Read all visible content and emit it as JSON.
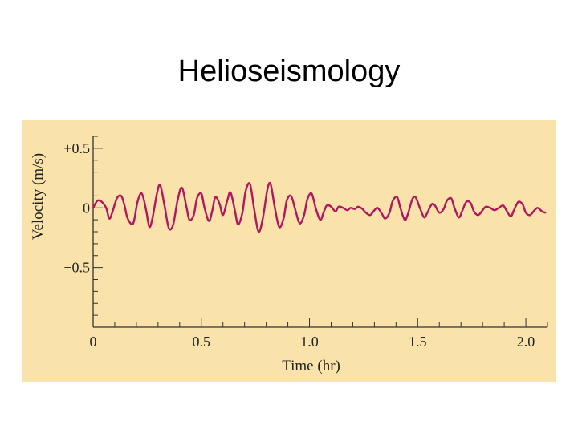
{
  "slide": {
    "title": "Helioseismology"
  },
  "colors": {
    "panel_background": "#f9e3ab",
    "line": "#b0175f",
    "axis": "#333333"
  },
  "chart_data": {
    "type": "line",
    "title": "",
    "xlabel": "Time (hr)",
    "ylabel": "Velocity (m/s)",
    "xlim": [
      0,
      2.1
    ],
    "ylim": [
      -1.0,
      0.6
    ],
    "x_ticks": [
      {
        "value": 0,
        "label": "0"
      },
      {
        "value": 0.5,
        "label": "0.5"
      },
      {
        "value": 1.0,
        "label": "1.0"
      },
      {
        "value": 1.5,
        "label": "1.5"
      },
      {
        "value": 2.0,
        "label": "2.0"
      }
    ],
    "y_ticks": [
      {
        "value": 0.5,
        "label": "+0.5"
      },
      {
        "value": 0,
        "label": "0"
      },
      {
        "value": -0.5,
        "label": "−0.5"
      }
    ],
    "grid": false,
    "series": [
      {
        "values": [
          [
            0.0,
            0.0
          ],
          [
            0.02,
            0.06
          ],
          [
            0.04,
            0.05
          ],
          [
            0.06,
            0.0
          ],
          [
            0.075,
            -0.09
          ],
          [
            0.09,
            -0.03
          ],
          [
            0.11,
            0.08
          ],
          [
            0.13,
            0.1
          ],
          [
            0.145,
            0.02
          ],
          [
            0.16,
            -0.09
          ],
          [
            0.185,
            -0.13
          ],
          [
            0.205,
            0.05
          ],
          [
            0.225,
            0.12
          ],
          [
            0.245,
            -0.02
          ],
          [
            0.26,
            -0.16
          ],
          [
            0.275,
            -0.08
          ],
          [
            0.295,
            0.12
          ],
          [
            0.31,
            0.19
          ],
          [
            0.33,
            0.02
          ],
          [
            0.35,
            -0.17
          ],
          [
            0.37,
            -0.14
          ],
          [
            0.39,
            0.06
          ],
          [
            0.41,
            0.17
          ],
          [
            0.43,
            0.02
          ],
          [
            0.445,
            -0.1
          ],
          [
            0.465,
            -0.06
          ],
          [
            0.48,
            0.08
          ],
          [
            0.5,
            0.12
          ],
          [
            0.515,
            0.0
          ],
          [
            0.535,
            -0.11
          ],
          [
            0.55,
            -0.03
          ],
          [
            0.565,
            0.09
          ],
          [
            0.585,
            0.03
          ],
          [
            0.6,
            -0.06
          ],
          [
            0.62,
            0.06
          ],
          [
            0.635,
            0.13
          ],
          [
            0.655,
            -0.02
          ],
          [
            0.67,
            -0.14
          ],
          [
            0.69,
            -0.04
          ],
          [
            0.705,
            0.14
          ],
          [
            0.725,
            0.2
          ],
          [
            0.745,
            -0.02
          ],
          [
            0.765,
            -0.2
          ],
          [
            0.785,
            -0.08
          ],
          [
            0.805,
            0.15
          ],
          [
            0.82,
            0.2
          ],
          [
            0.84,
            0.0
          ],
          [
            0.86,
            -0.16
          ],
          [
            0.88,
            -0.09
          ],
          [
            0.895,
            0.06
          ],
          [
            0.915,
            0.1
          ],
          [
            0.935,
            -0.02
          ],
          [
            0.955,
            -0.13
          ],
          [
            0.975,
            -0.06
          ],
          [
            0.99,
            0.07
          ],
          [
            1.01,
            0.12
          ],
          [
            1.03,
            -0.01
          ],
          [
            1.05,
            -0.1
          ],
          [
            1.065,
            -0.04
          ],
          [
            1.08,
            0.02
          ],
          [
            1.1,
            0.01
          ],
          [
            1.12,
            -0.03
          ],
          [
            1.135,
            0.01
          ],
          [
            1.155,
            0.0
          ],
          [
            1.175,
            -0.02
          ],
          [
            1.19,
            0.0
          ],
          [
            1.21,
            -0.01
          ],
          [
            1.225,
            0.01
          ],
          [
            1.245,
            -0.01
          ],
          [
            1.26,
            -0.04
          ],
          [
            1.28,
            -0.06
          ],
          [
            1.3,
            -0.02
          ],
          [
            1.315,
            0.0
          ],
          [
            1.335,
            -0.05
          ],
          [
            1.35,
            -0.09
          ],
          [
            1.37,
            -0.04
          ],
          [
            1.385,
            0.06
          ],
          [
            1.405,
            0.09
          ],
          [
            1.42,
            0.0
          ],
          [
            1.44,
            -0.1
          ],
          [
            1.455,
            -0.05
          ],
          [
            1.475,
            0.07
          ],
          [
            1.49,
            0.09
          ],
          [
            1.51,
            0.0
          ],
          [
            1.53,
            -0.08
          ],
          [
            1.545,
            -0.04
          ],
          [
            1.565,
            0.03
          ],
          [
            1.58,
            0.02
          ],
          [
            1.6,
            -0.04
          ],
          [
            1.62,
            -0.01
          ],
          [
            1.635,
            0.06
          ],
          [
            1.655,
            0.08
          ],
          [
            1.67,
            0.0
          ],
          [
            1.69,
            -0.08
          ],
          [
            1.705,
            -0.03
          ],
          [
            1.725,
            0.05
          ],
          [
            1.745,
            0.04
          ],
          [
            1.76,
            -0.03
          ],
          [
            1.78,
            -0.06
          ],
          [
            1.8,
            -0.02
          ],
          [
            1.815,
            0.01
          ],
          [
            1.835,
            0.0
          ],
          [
            1.855,
            -0.02
          ],
          [
            1.875,
            0.0
          ],
          [
            1.895,
            0.02
          ],
          [
            1.91,
            -0.02
          ],
          [
            1.93,
            -0.07
          ],
          [
            1.945,
            -0.02
          ],
          [
            1.965,
            0.05
          ],
          [
            1.985,
            0.03
          ],
          [
            2.0,
            -0.04
          ],
          [
            2.02,
            -0.06
          ],
          [
            2.04,
            -0.02
          ],
          [
            2.055,
            0.0
          ],
          [
            2.075,
            -0.03
          ],
          [
            2.09,
            -0.04
          ]
        ]
      }
    ]
  }
}
